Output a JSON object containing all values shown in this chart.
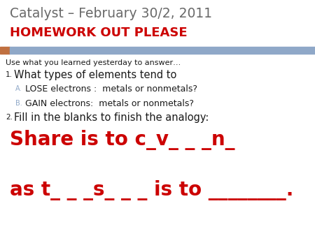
{
  "title_line1": "Catalyst – February 30/2, 2011",
  "title_line2": "HOMEWORK OUT PLEASE",
  "title_line1_color": "#696969",
  "title_line2_color": "#CC0000",
  "divider_color": "#8FA8C8",
  "divider_left_color": "#C07040",
  "body_color": "#1a1a1a",
  "red_color": "#CC0000",
  "background_color": "#FFFFFF",
  "line0": "Use what you learned yesterday to answer…",
  "item1_num": "1.",
  "item1": "  What types of elements tend to",
  "itemA_num": "A.",
  "itemA": "  LOSE electrons :  metals or nonmetals?",
  "itemB_num": "B.",
  "itemB": "  GAIN electrons:  metals or nonmetals?",
  "item2_num": "2.",
  "item2": "  Fill in the blanks to finish the analogy:",
  "big_line1": "Share is to c_v_ _ _n_",
  "big_line2": "as t_ _ _s_ _ _ is to ________."
}
